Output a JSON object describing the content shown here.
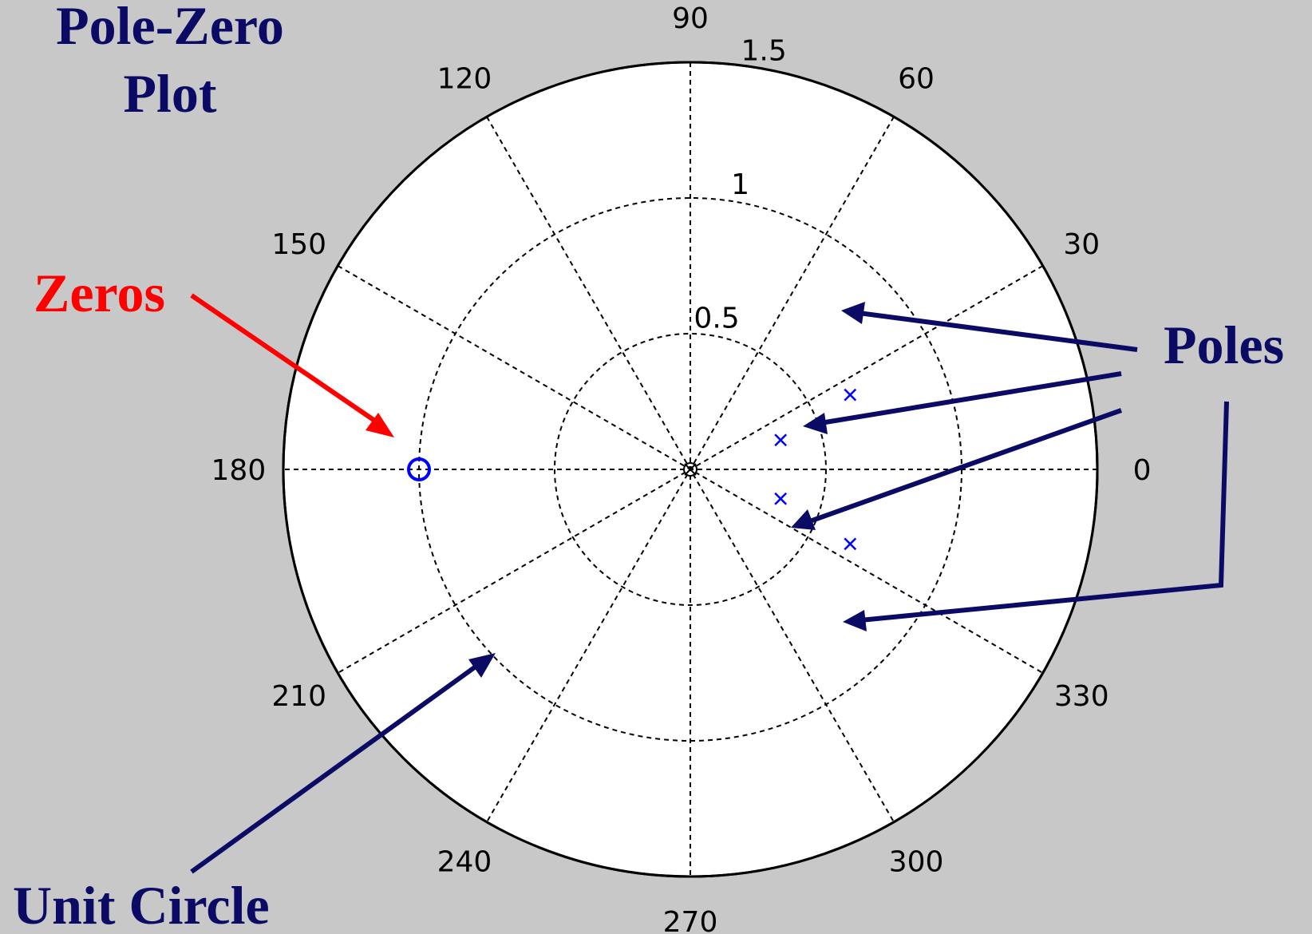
{
  "figure": {
    "title_line1": "Pole-Zero",
    "title_line2": "Plot",
    "zeros_label": "Zeros",
    "poles_label": "Poles",
    "unit_circle_label": "Unit Circle"
  },
  "colors": {
    "background": "#c8c8c8",
    "plot_area": "#ffffff",
    "annotation_navy": "#0b0b66",
    "zeros_red": "#ff0000",
    "marker_blue": "#0000ff"
  },
  "chart_data": {
    "type": "scatter",
    "coordinate_system": "polar",
    "title": "",
    "rmax": 1.5,
    "radial_ticks": [
      0.5,
      1,
      1.5
    ],
    "radial_tick_labels": [
      "0.5",
      "1",
      "1.5"
    ],
    "angular_ticks_deg": [
      0,
      30,
      60,
      90,
      120,
      150,
      180,
      210,
      240,
      270,
      300,
      330
    ],
    "angular_tick_labels": [
      "0",
      "30",
      "60",
      "90",
      "120",
      "150",
      "180",
      "210",
      "240",
      "270",
      "300",
      "330"
    ],
    "grid": true,
    "series": [
      {
        "marker": "x",
        "color": "#0000ff",
        "points": [
          {
            "r": 0.65,
            "theta_deg": 25
          },
          {
            "r": 0.35,
            "theta_deg": 18
          },
          {
            "r": 0.35,
            "theta_deg": -18
          },
          {
            "r": 0.65,
            "theta_deg": -25
          }
        ]
      },
      {
        "marker": "o",
        "color": "#0000ff",
        "points": [
          {
            "r": 1.0,
            "theta_deg": 180
          }
        ]
      }
    ]
  }
}
